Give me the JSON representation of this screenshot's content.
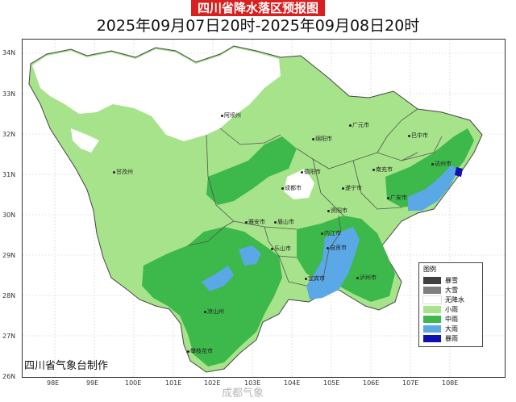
{
  "title": "四川省降水落区预报图",
  "subtitle": "2025年09月07日20时-2025年09月08日20时",
  "lat_labels": [
    "34N",
    "33N",
    "32N",
    "31N",
    "30N",
    "29N",
    "28N",
    "27N",
    "26N"
  ],
  "lon_labels": [
    "98E",
    "99E",
    "100E",
    "101E",
    "102E",
    "103E",
    "104E",
    "105E",
    "106E",
    "107E",
    "108E"
  ],
  "legend": {
    "title": "图例",
    "items": [
      {
        "label": "暴雪",
        "color": "#404040"
      },
      {
        "label": "大雪",
        "color": "#7f7f7f"
      },
      {
        "label": "无降水",
        "color": "#ffffff"
      },
      {
        "label": "小雨",
        "color": "#a6e38a"
      },
      {
        "label": "中雨",
        "color": "#3db84a"
      },
      {
        "label": "大雨",
        "color": "#5aa8e6"
      },
      {
        "label": "暴雨",
        "color": "#1010b0"
      }
    ]
  },
  "cities": [
    "阿坝州",
    "甘孜州",
    "广元市",
    "巴中市",
    "绵阳市",
    "南充市",
    "达州市",
    "德阳市",
    "遂宁市",
    "广安市",
    "成都市",
    "资阳市",
    "雅安市",
    "眉山市",
    "内江市",
    "乐山市",
    "自贡市",
    "宜宾市",
    "泸州市",
    "凉山州",
    "攀枝花市"
  ],
  "credit": "四川省气象台制作",
  "watermark": "成都气象"
}
